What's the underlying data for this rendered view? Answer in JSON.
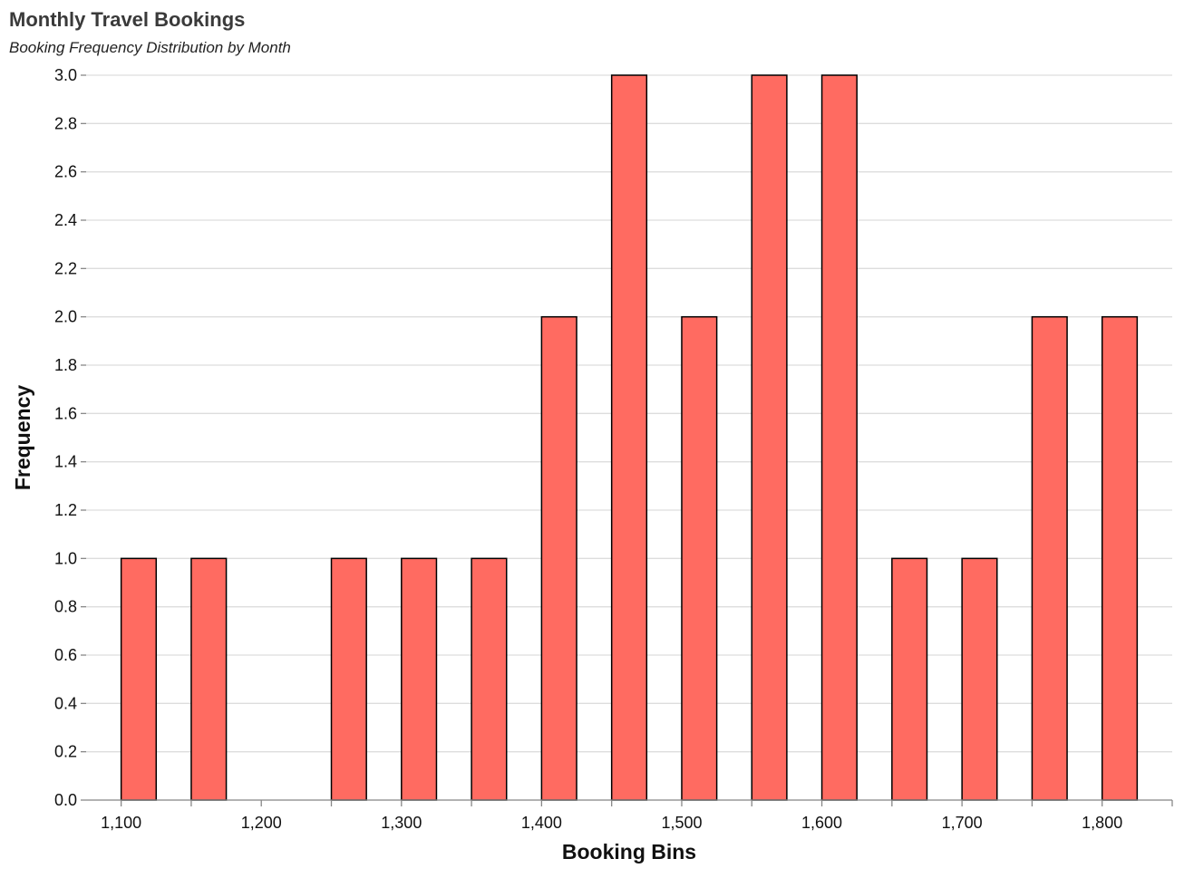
{
  "chart_data": {
    "type": "bar",
    "title": "Monthly Travel Bookings",
    "subtitle": "Booking Frequency Distribution by Month",
    "xlabel": "Booking Bins",
    "ylabel": "Frequency",
    "xlim": [
      1075,
      1850
    ],
    "ylim": [
      0,
      3
    ],
    "bar_color": "#FF6B61",
    "grid": true,
    "x_ticks": [
      1100,
      1200,
      1300,
      1400,
      1500,
      1600,
      1700,
      1800
    ],
    "x_tick_labels": [
      "1,100",
      "1,200",
      "1,300",
      "1,400",
      "1,500",
      "1,600",
      "1,700",
      "1,800"
    ],
    "y_ticks": [
      0,
      0.2,
      0.4,
      0.6,
      0.8,
      1.0,
      1.2,
      1.4,
      1.6,
      1.8,
      2.0,
      2.2,
      2.4,
      2.6,
      2.8,
      3.0
    ],
    "y_tick_labels": [
      "0.0",
      "0.2",
      "0.4",
      "0.6",
      "0.8",
      "1.0",
      "1.2",
      "1.4",
      "1.6",
      "1.8",
      "2.0",
      "2.2",
      "2.4",
      "2.6",
      "2.8",
      "3.0"
    ],
    "bins": [
      {
        "start": 1100,
        "end": 1125,
        "count": 1
      },
      {
        "start": 1150,
        "end": 1175,
        "count": 1
      },
      {
        "start": 1250,
        "end": 1275,
        "count": 1
      },
      {
        "start": 1300,
        "end": 1325,
        "count": 1
      },
      {
        "start": 1350,
        "end": 1375,
        "count": 1
      },
      {
        "start": 1400,
        "end": 1425,
        "count": 2
      },
      {
        "start": 1450,
        "end": 1475,
        "count": 3
      },
      {
        "start": 1500,
        "end": 1525,
        "count": 2
      },
      {
        "start": 1550,
        "end": 1575,
        "count": 3
      },
      {
        "start": 1600,
        "end": 1625,
        "count": 3
      },
      {
        "start": 1650,
        "end": 1675,
        "count": 1
      },
      {
        "start": 1700,
        "end": 1725,
        "count": 1
      },
      {
        "start": 1750,
        "end": 1775,
        "count": 2
      },
      {
        "start": 1800,
        "end": 1825,
        "count": 2
      }
    ]
  }
}
